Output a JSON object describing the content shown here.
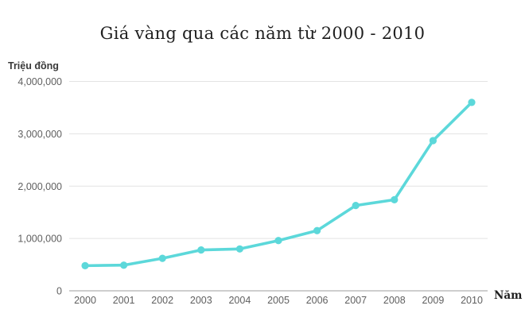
{
  "page": {
    "background": "#ffffff"
  },
  "header": {
    "title": "Giá vàng qua các năm từ 2000 - 2010"
  },
  "chart_data": {
    "type": "line",
    "title": "Giá vàng qua các năm từ 2000 - 2010",
    "series_name": "Giá vàng",
    "categories": [
      "2000",
      "2001",
      "2002",
      "2003",
      "2004",
      "2005",
      "2006",
      "2007",
      "2008",
      "2009",
      "2010"
    ],
    "values": [
      480000,
      490000,
      620000,
      780000,
      800000,
      960000,
      1150000,
      1630000,
      1740000,
      2870000,
      3600000
    ],
    "xlabel": "Năm",
    "ylabel": "Triệu đồng",
    "ylim": [
      0,
      4000000
    ],
    "y_ticks": [
      0,
      1000000,
      2000000,
      3000000,
      4000000
    ],
    "y_tick_labels": [
      "0",
      "1,000,000",
      "2,000,000",
      "3,000,000",
      "4,000,000"
    ],
    "grid": true,
    "legend": false,
    "line_color": "#5cd8da",
    "marker": "circle",
    "colors": {
      "gridline": "#e3e3e3",
      "axis_line": "#9c9c9c",
      "tick_text": "#5f5f5f",
      "title_text": "#1f1f1f"
    }
  }
}
